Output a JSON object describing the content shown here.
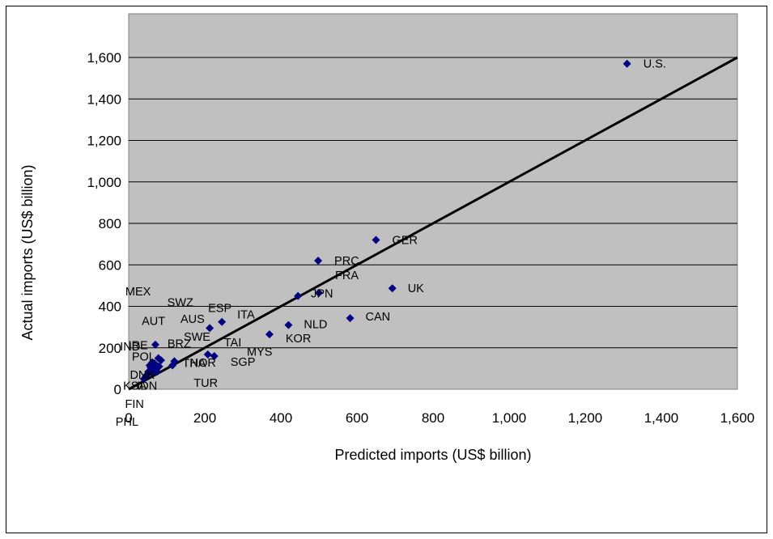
{
  "chart_data": {
    "type": "scatter",
    "title": "",
    "xlabel": "Predicted imports (US$ billion)",
    "ylabel": "Actual imports (US$ billion)",
    "xlim": [
      0,
      1600
    ],
    "ylim": [
      0,
      1600
    ],
    "x_ticks": [
      0,
      200,
      400,
      600,
      800,
      1000,
      1200,
      1400,
      1600
    ],
    "y_ticks": [
      0,
      200,
      400,
      600,
      800,
      1000,
      1200,
      1400,
      1600
    ],
    "x_tick_labels": [
      "0",
      "200",
      "400",
      "600",
      "800",
      "1,000",
      "1,200",
      "1,400",
      "1,600"
    ],
    "y_tick_labels": [
      "0",
      "200",
      "400",
      "600",
      "800",
      "1,000",
      "1,200",
      "1,400",
      "1,600"
    ],
    "grid": "horizontal",
    "plot_background": "#c0c0c0",
    "marker": "diamond",
    "marker_color": "#000080",
    "reference_line": {
      "x": [
        0,
        1600
      ],
      "y": [
        0,
        1600
      ],
      "color": "#000000"
    },
    "points": [
      {
        "label": "U.S.",
        "x": 1310,
        "y": 1570
      },
      {
        "label": "GER",
        "x": 650,
        "y": 720
      },
      {
        "label": "PRC",
        "x": 498,
        "y": 620
      },
      {
        "label": "FRA",
        "x": 500,
        "y": 465
      },
      {
        "label": "JPN",
        "x": 445,
        "y": 450
      },
      {
        "label": "UK",
        "x": 693,
        "y": 487
      },
      {
        "label": "CAN",
        "x": 582,
        "y": 343
      },
      {
        "label": "NLD",
        "x": 420,
        "y": 310
      },
      {
        "label": "KOR",
        "x": 370,
        "y": 265
      },
      {
        "label": "ITA",
        "x": 245,
        "y": 325
      },
      {
        "label": "ESP",
        "x": 213,
        "y": 295
      },
      {
        "label": "TAI",
        "x": 208,
        "y": 168
      },
      {
        "label": "SGP",
        "x": 225,
        "y": 160
      },
      {
        "label": "MEX",
        "x": 70,
        "y": 215
      },
      {
        "label": "THA",
        "x": 120,
        "y": 135
      },
      {
        "label": "MYS",
        "x": 115,
        "y": 115
      },
      {
        "label": "NOR",
        "x": 80,
        "y": 110
      },
      {
        "label": "TUR",
        "x": 75,
        "y": 85
      },
      {
        "label": "SWZ",
        "x": 78,
        "y": 150
      },
      {
        "label": "AUS",
        "x": 85,
        "y": 140
      },
      {
        "label": "SWE",
        "x": 68,
        "y": 125
      },
      {
        "label": "AUT",
        "x": 62,
        "y": 130
      },
      {
        "label": "IND",
        "x": 58,
        "y": 105
      },
      {
        "label": "IRE",
        "x": 65,
        "y": 95
      },
      {
        "label": "BRZ",
        "x": 72,
        "y": 100
      },
      {
        "label": "POL",
        "x": 55,
        "y": 115
      },
      {
        "label": "DNK",
        "x": 52,
        "y": 85
      },
      {
        "label": "IDN",
        "x": 60,
        "y": 80
      },
      {
        "label": "KSA",
        "x": 45,
        "y": 60
      },
      {
        "label": "FIN",
        "x": 48,
        "y": 70
      },
      {
        "label": "PHL",
        "x": 40,
        "y": 50
      }
    ]
  }
}
